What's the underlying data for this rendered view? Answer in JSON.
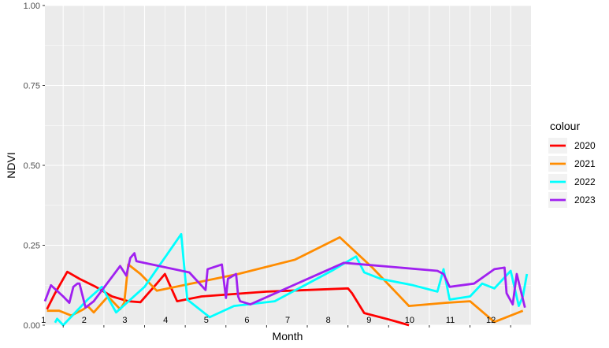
{
  "chart_data": {
    "type": "line",
    "xlabel": "Month",
    "ylabel": "NDVI",
    "ylim": [
      0,
      1
    ],
    "xlim": [
      0.55,
      12.5
    ],
    "x_ticks": [
      1,
      2,
      3,
      4,
      5,
      6,
      7,
      8,
      9,
      10,
      11,
      12
    ],
    "y_ticks": [
      0.0,
      0.25,
      0.5,
      0.75,
      1.0
    ],
    "y_tick_labels": [
      "0.00",
      "0.25",
      "0.50",
      "0.75",
      "1.00"
    ],
    "grid": true,
    "legend_title": "colour",
    "legend_position": "right",
    "series": [
      {
        "name": "2020",
        "color": "#ff0000",
        "x": [
          0.6,
          0.8,
          1.1,
          1.4,
          1.8,
          2.2,
          2.6,
          2.9,
          3.3,
          3.5,
          3.8,
          4.4,
          6.0,
          8.0,
          8.1,
          8.4,
          9.0,
          9.5
        ],
        "y": [
          0.05,
          0.1,
          0.167,
          0.145,
          0.12,
          0.09,
          0.075,
          0.072,
          0.13,
          0.16,
          0.075,
          0.09,
          0.105,
          0.115,
          0.1,
          0.038,
          0.018,
          0.0
        ]
      },
      {
        "name": "2021",
        "color": "#ff8c00",
        "x": [
          0.6,
          0.9,
          1.2,
          1.5,
          1.6,
          1.75,
          2.1,
          2.4,
          2.5,
          2.6,
          2.9,
          3.3,
          5.3,
          6.7,
          7.8,
          8.6,
          9.5,
          10.4,
          11.0,
          11.6,
          12.3
        ],
        "y": [
          0.045,
          0.045,
          0.03,
          0.05,
          0.06,
          0.04,
          0.09,
          0.05,
          0.07,
          0.19,
          0.16,
          0.108,
          0.16,
          0.205,
          0.275,
          0.18,
          0.06,
          0.07,
          0.075,
          0.01,
          0.045
        ]
      },
      {
        "name": "2022",
        "color": "#00ffff",
        "x": [
          0.8,
          0.85,
          1.0,
          1.6,
          1.95,
          2.3,
          3.0,
          3.9,
          4.05,
          4.6,
          5.2,
          6.2,
          7.6,
          8.2,
          8.4,
          8.8,
          9.6,
          10.2,
          10.35,
          10.5,
          11.0,
          11.3,
          11.6,
          12.0,
          12.2,
          12.3,
          12.4
        ],
        "y": [
          0.008,
          0.02,
          0.0,
          0.08,
          0.12,
          0.04,
          0.12,
          0.285,
          0.08,
          0.025,
          0.06,
          0.075,
          0.17,
          0.215,
          0.165,
          0.145,
          0.125,
          0.105,
          0.175,
          0.08,
          0.09,
          0.13,
          0.115,
          0.17,
          0.06,
          0.09,
          0.16
        ]
      },
      {
        "name": "2023",
        "color": "#a020f0",
        "x": [
          0.55,
          0.7,
          1.0,
          1.15,
          1.25,
          1.35,
          1.4,
          1.55,
          1.75,
          2.4,
          2.55,
          2.65,
          2.75,
          2.8,
          4.1,
          4.5,
          4.55,
          4.9,
          5.0,
          5.05,
          5.25,
          5.3,
          5.35,
          5.6,
          7.9,
          10.2,
          10.35,
          10.5,
          11.1,
          11.6,
          11.85,
          11.9,
          12.05,
          12.15,
          12.35
        ],
        "y": [
          0.075,
          0.125,
          0.09,
          0.07,
          0.12,
          0.13,
          0.13,
          0.055,
          0.075,
          0.185,
          0.155,
          0.21,
          0.225,
          0.2,
          0.165,
          0.11,
          0.175,
          0.19,
          0.085,
          0.145,
          0.16,
          0.09,
          0.075,
          0.065,
          0.195,
          0.17,
          0.16,
          0.12,
          0.13,
          0.175,
          0.18,
          0.1,
          0.065,
          0.16,
          0.055
        ]
      }
    ]
  }
}
